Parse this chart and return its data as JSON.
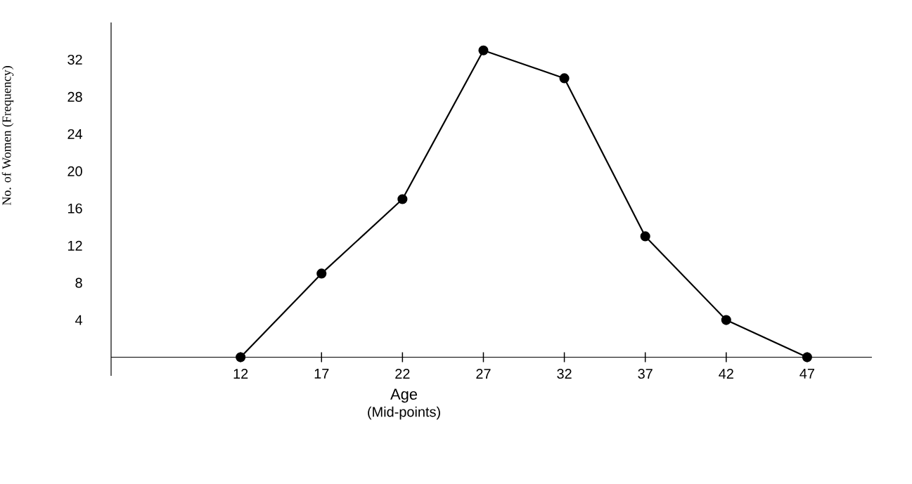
{
  "chart_data": {
    "type": "line",
    "xlabel": "Age",
    "ylabel": "No. of Women (Frequency)",
    "annotations": [
      "(Mid-points)"
    ],
    "x": [
      12,
      17,
      22,
      27,
      32,
      37,
      42,
      47
    ],
    "series": [
      {
        "color": "#000000",
        "values": [
          0,
          9,
          17,
          33,
          30,
          13,
          4,
          0
        ]
      }
    ],
    "xlim": [
      4,
      51
    ],
    "ylim": [
      -2,
      36
    ],
    "xticks": [
      12,
      17,
      22,
      27,
      32,
      37,
      42,
      47
    ],
    "yticks": [
      4,
      8,
      12,
      16,
      20,
      24,
      28,
      32
    ],
    "marker": "circle",
    "line_style": "solid",
    "grid": false
  }
}
